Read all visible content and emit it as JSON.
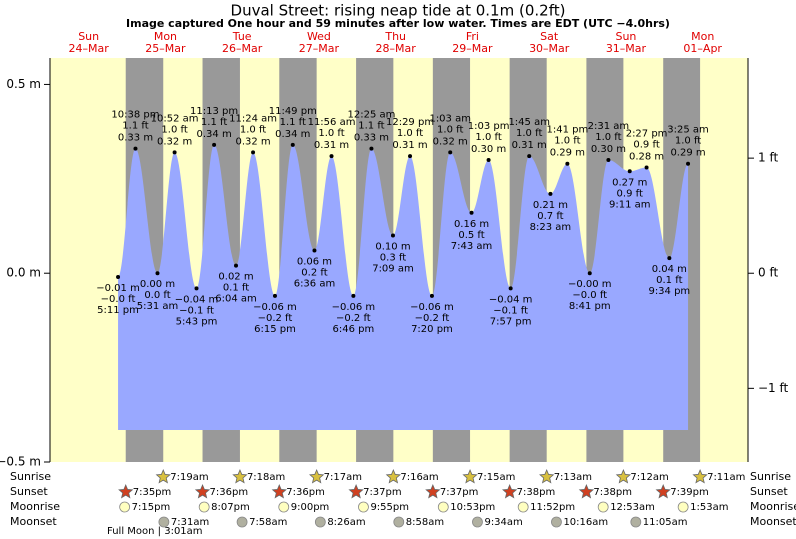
{
  "chart_data": {
    "type": "tide",
    "title": "Duval Street: rising  neap tide at 0.1m (0.2ft)",
    "subtitle": "Image captured One hour and 59 minutes after low water. Times are EDT (UTC −4.0hrs)",
    "ylim": [
      -0.5,
      0.57
    ],
    "yticks": [
      {
        "value": 0.5,
        "label": "0.5 m"
      },
      {
        "value": 0,
        "label": "0.0 m"
      },
      {
        "value": -0.5,
        "label": "−0.5 m"
      }
    ],
    "y2lim": [
      -1.64,
      1.87
    ],
    "y2ticks": [
      {
        "value": 1,
        "label": "1 ft"
      },
      {
        "value": 0,
        "label": "0 ft"
      },
      {
        "value": -1,
        "label": "−1 ft"
      }
    ],
    "colors": {
      "day": "#ffffc8",
      "night": "#999999",
      "water": "#99a8ff",
      "sunrise": "#d8c040",
      "sunset": "#d04020",
      "moonrise": "#ffffc0",
      "moonset": "#b0b0a0"
    },
    "row_labels": {
      "sunrise": "Sunrise",
      "sunset": "Sunset",
      "moonrise": "Moonrise",
      "moonset": "Moonset"
    },
    "moon_phase": "Full Moon | 3:01am",
    "days": [
      {
        "name": "Sun",
        "date": "24–Mar",
        "sunset": "7:35pm",
        "moonrise": "7:15pm",
        "tides": [
          {
            "time": "5:11 pm",
            "m": {
              "value": -0.01,
              "label": "−0.01 m"
            },
            "ft": {
              "value": -0.0,
              "label": "−0.0 ft"
            }
          },
          {
            "time": "10:38 pm",
            "m": {
              "value": 0.33,
              "label": "0.33 m"
            },
            "ft": {
              "value": 1.1,
              "label": "1.1 ft"
            }
          }
        ]
      },
      {
        "name": "Mon",
        "date": "25–Mar",
        "sunrise": "7:19am",
        "sunset": "7:36pm",
        "moonrise": "8:07pm",
        "moonset": "7:31am",
        "tides": [
          {
            "time": "5:31 am",
            "m": {
              "value": 0.0,
              "label": "0.00 m"
            },
            "ft": {
              "value": 0.0,
              "label": "0.0 ft"
            }
          },
          {
            "time": "10:52 am",
            "m": {
              "value": 0.32,
              "label": "0.32 m"
            },
            "ft": {
              "value": 1.0,
              "label": "1.0 ft"
            }
          },
          {
            "time": "5:43 pm",
            "m": {
              "value": -0.04,
              "label": "−0.04 m"
            },
            "ft": {
              "value": -0.1,
              "label": "−0.1 ft"
            }
          },
          {
            "time": "11:13 pm",
            "m": {
              "value": 0.34,
              "label": "0.34 m"
            },
            "ft": {
              "value": 1.1,
              "label": "1.1 ft"
            }
          }
        ]
      },
      {
        "name": "Tue",
        "date": "26–Mar",
        "sunrise": "7:18am",
        "sunset": "7:36pm",
        "moonrise": "9:00pm",
        "moonset": "7:58am",
        "tides": [
          {
            "time": "6:04 am",
            "m": {
              "value": 0.02,
              "label": "0.02 m"
            },
            "ft": {
              "value": 0.1,
              "label": "0.1 ft"
            }
          },
          {
            "time": "11:24 am",
            "m": {
              "value": 0.32,
              "label": "0.32 m"
            },
            "ft": {
              "value": 1.0,
              "label": "1.0 ft"
            }
          },
          {
            "time": "6:15 pm",
            "m": {
              "value": -0.06,
              "label": "−0.06 m"
            },
            "ft": {
              "value": -0.2,
              "label": "−0.2 ft"
            }
          },
          {
            "time": "11:49 pm",
            "m": {
              "value": 0.34,
              "label": "0.34 m"
            },
            "ft": {
              "value": 1.1,
              "label": "1.1 ft"
            }
          }
        ]
      },
      {
        "name": "Wed",
        "date": "27–Mar",
        "sunrise": "7:17am",
        "sunset": "7:37pm",
        "moonrise": "9:55pm",
        "moonset": "8:26am",
        "tides": [
          {
            "time": "6:36 am",
            "m": {
              "value": 0.06,
              "label": "0.06 m"
            },
            "ft": {
              "value": 0.2,
              "label": "0.2 ft"
            }
          },
          {
            "time": "11:56 am",
            "m": {
              "value": 0.31,
              "label": "0.31 m"
            },
            "ft": {
              "value": 1.0,
              "label": "1.0 ft"
            }
          },
          {
            "time": "6:46 pm",
            "m": {
              "value": -0.06,
              "label": "−0.06 m"
            },
            "ft": {
              "value": -0.2,
              "label": "−0.2 ft"
            }
          }
        ]
      },
      {
        "name": "Thu",
        "date": "28–Mar",
        "sunrise": "7:16am",
        "sunset": "7:37pm",
        "moonrise": "10:53pm",
        "moonset": "8:58am",
        "tides": [
          {
            "time": "12:25 am",
            "m": {
              "value": 0.33,
              "label": "0.33 m"
            },
            "ft": {
              "value": 1.1,
              "label": "1.1 ft"
            }
          },
          {
            "time": "7:09 am",
            "m": {
              "value": 0.1,
              "label": "0.10 m"
            },
            "ft": {
              "value": 0.3,
              "label": "0.3 ft"
            }
          },
          {
            "time": "12:29 pm",
            "m": {
              "value": 0.31,
              "label": "0.31 m"
            },
            "ft": {
              "value": 1.0,
              "label": "1.0 ft"
            }
          },
          {
            "time": "7:20 pm",
            "m": {
              "value": -0.06,
              "label": "−0.06 m"
            },
            "ft": {
              "value": -0.2,
              "label": "−0.2 ft"
            }
          }
        ]
      },
      {
        "name": "Fri",
        "date": "29–Mar",
        "sunrise": "7:15am",
        "sunset": "7:38pm",
        "moonrise": "11:52pm",
        "moonset": "9:34am",
        "tides": [
          {
            "time": "1:03 am",
            "m": {
              "value": 0.32,
              "label": "0.32 m"
            },
            "ft": {
              "value": 1.0,
              "label": "1.0 ft"
            }
          },
          {
            "time": "7:43 am",
            "m": {
              "value": 0.16,
              "label": "0.16 m"
            },
            "ft": {
              "value": 0.5,
              "label": "0.5 ft"
            }
          },
          {
            "time": "1:03 pm",
            "m": {
              "value": 0.3,
              "label": "0.30 m"
            },
            "ft": {
              "value": 1.0,
              "label": "1.0 ft"
            }
          },
          {
            "time": "7:57 pm",
            "m": {
              "value": -0.04,
              "label": "−0.04 m"
            },
            "ft": {
              "value": -0.1,
              "label": "−0.1 ft"
            }
          }
        ]
      },
      {
        "name": "Sat",
        "date": "30–Mar",
        "sunrise": "7:13am",
        "sunset": "7:38pm",
        "moonset": "10:16am",
        "tides": [
          {
            "time": "1:45 am",
            "m": {
              "value": 0.31,
              "label": "0.31 m"
            },
            "ft": {
              "value": 1.0,
              "label": "1.0 ft"
            }
          },
          {
            "time": "8:23 am",
            "m": {
              "value": 0.21,
              "label": "0.21 m"
            },
            "ft": {
              "value": 0.7,
              "label": "0.7 ft"
            }
          },
          {
            "time": "1:41 pm",
            "m": {
              "value": 0.29,
              "label": "0.29 m"
            },
            "ft": {
              "value": 1.0,
              "label": "1.0 ft"
            }
          },
          {
            "time": "8:41 pm",
            "m": {
              "value": -0.0,
              "label": "−0.00 m"
            },
            "ft": {
              "value": -0.0,
              "label": "−0.0 ft"
            }
          }
        ]
      },
      {
        "name": "Sun",
        "date": "31–Mar",
        "sunrise": "7:12am",
        "sunset": "7:39pm",
        "moonrise": "12:53am",
        "moonset": "11:05am",
        "tides": [
          {
            "time": "2:31 am",
            "m": {
              "value": 0.3,
              "label": "0.30 m"
            },
            "ft": {
              "value": 1.0,
              "label": "1.0 ft"
            }
          },
          {
            "time": "9:11 am",
            "m": {
              "value": 0.27,
              "label": "0.27 m"
            },
            "ft": {
              "value": 0.9,
              "label": "0.9 ft"
            }
          },
          {
            "time": "2:27 pm",
            "m": {
              "value": 0.28,
              "label": "0.28 m"
            },
            "ft": {
              "value": 0.9,
              "label": "0.9 ft"
            }
          },
          {
            "time": "9:34 pm",
            "m": {
              "value": 0.04,
              "label": "0.04 m"
            },
            "ft": {
              "value": 0.1,
              "label": "0.1 ft"
            }
          }
        ]
      },
      {
        "name": "Mon",
        "date": "01–Apr",
        "sunrise": "7:11am",
        "moonrise": "1:53am",
        "tides": [
          {
            "time": "3:25 am",
            "m": {
              "value": 0.29,
              "label": "0.29 m"
            },
            "ft": {
              "value": 1.0,
              "label": "1.0 ft"
            }
          }
        ]
      }
    ]
  }
}
